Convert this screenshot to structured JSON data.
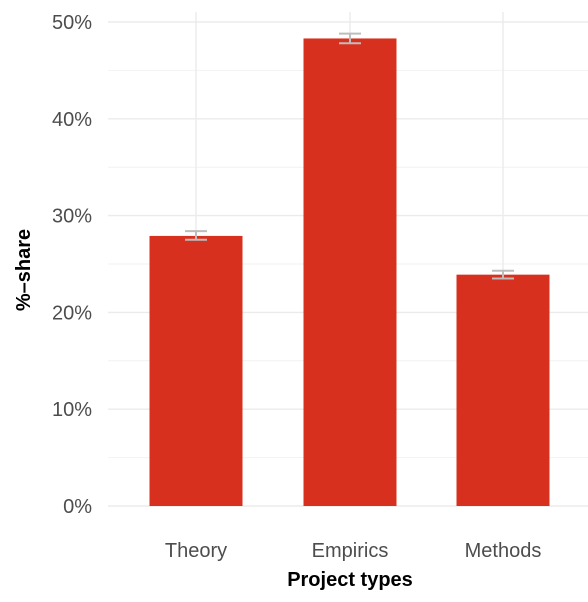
{
  "chart_data": {
    "type": "bar",
    "xlabel": "Project types",
    "ylabel": "%–share",
    "categories": [
      "Theory",
      "Empirics",
      "Methods"
    ],
    "values": [
      27.9,
      48.3,
      23.9
    ],
    "error_bars": {
      "lower": [
        27.5,
        47.8,
        23.5
      ],
      "upper": [
        28.4,
        48.8,
        24.3
      ]
    },
    "ylim": [
      0,
      50
    ],
    "yticks": [
      0,
      10,
      20,
      30,
      40,
      50
    ],
    "ytick_labels": [
      "0%",
      "10%",
      "20%",
      "30%",
      "40%",
      "50%"
    ],
    "grid": true,
    "legend": "none",
    "colors": {
      "bar": "#d8301f",
      "error_bar": "#bdbdbd",
      "grid": "#ebebeb"
    }
  }
}
